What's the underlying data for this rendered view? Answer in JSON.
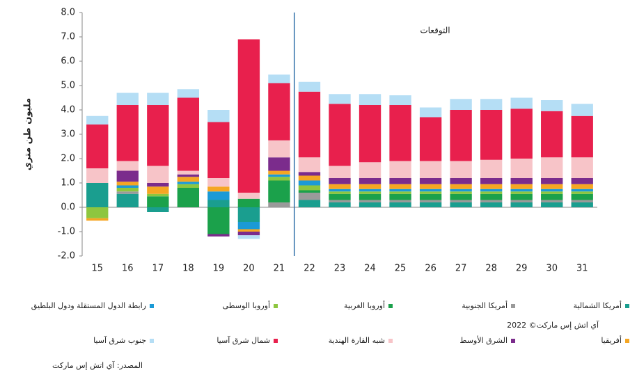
{
  "chart_data": {
    "type": "stacked_bar",
    "y_label": "مليون طن متري",
    "annotation": "التوقعات",
    "copyright": "آي اتش إس ماركت© 2022",
    "source": "المصدر: آي اتش إس ماركت",
    "categories": [
      "15",
      "16",
      "17",
      "18",
      "19",
      "20",
      "21",
      "22",
      "23",
      "24",
      "25",
      "26",
      "27",
      "28",
      "29",
      "30",
      "31"
    ],
    "ylim": [
      -2,
      8
    ],
    "yticks": [
      {
        "value": -2,
        "label": "-2.0"
      },
      {
        "value": -1,
        "label": "-1.0"
      },
      {
        "value": 0,
        "label": "0.0"
      },
      {
        "value": 1,
        "label": "1.0"
      },
      {
        "value": 2,
        "label": "2.0"
      },
      {
        "value": 3,
        "label": "3.0"
      },
      {
        "value": 4,
        "label": "4.0"
      },
      {
        "value": 5,
        "label": "5.0"
      },
      {
        "value": 6,
        "label": "6.0"
      },
      {
        "value": 7,
        "label": "7.0"
      },
      {
        "value": 8,
        "label": "8.0"
      }
    ],
    "series": [
      {
        "name": "أمريكا الشمالية",
        "color": "#1a9e8f",
        "values": [
          1.0,
          0.55,
          -0.2,
          0,
          0.3,
          -0.6,
          0,
          0.3,
          0.2,
          0.2,
          0.2,
          0.2,
          0.2,
          0.2,
          0.2,
          0.2,
          0.2
        ]
      },
      {
        "name": "أمريكا الجنوبية",
        "color": "#9a9a9a",
        "values": [
          0,
          0.1,
          0,
          0,
          0,
          0,
          0.2,
          0.3,
          0.1,
          0.1,
          0.1,
          0.1,
          0.1,
          0.1,
          0.1,
          0.1,
          0.1
        ]
      },
      {
        "name": "أوروبا الغربية",
        "color": "#1ba14b",
        "values": [
          0,
          0,
          0.45,
          0.8,
          -1.1,
          0.35,
          0.9,
          0.1,
          0.25,
          0.25,
          0.25,
          0.25,
          0.25,
          0.25,
          0.25,
          0.25,
          0.25
        ]
      },
      {
        "name": "أوروبا الوسطى",
        "color": "#8dc63f",
        "values": [
          -0.45,
          0.15,
          0.1,
          0.15,
          0,
          0,
          0.15,
          0.2,
          0.1,
          0.1,
          0.1,
          0.1,
          0.1,
          0.1,
          0.1,
          0.1,
          0.1
        ]
      },
      {
        "name": "رابطة الدول المستقلة ودول البلطيق",
        "color": "#1b9ad6",
        "values": [
          0,
          0.1,
          0,
          0.1,
          0.35,
          -0.3,
          0.1,
          0.2,
          0.1,
          0.1,
          0.1,
          0.1,
          0.1,
          0.1,
          0.1,
          0.1,
          0.1
        ]
      },
      {
        "name": "أفريقيا",
        "color": "#f5a623",
        "values": [
          -0.1,
          0.15,
          0.3,
          0.2,
          0.2,
          -0.1,
          0.15,
          0.2,
          0.2,
          0.2,
          0.2,
          0.2,
          0.2,
          0.2,
          0.2,
          0.2,
          0.2
        ]
      },
      {
        "name": "الشرق الأوسط",
        "color": "#7b2c8c",
        "values": [
          0,
          0.45,
          0.15,
          0.1,
          -0.1,
          -0.15,
          0.55,
          0.15,
          0.25,
          0.25,
          0.25,
          0.25,
          0.25,
          0.25,
          0.25,
          0.25,
          0.25
        ]
      },
      {
        "name": "شبه القارة الهندية",
        "color": "#f7c4c8",
        "values": [
          0.6,
          0.4,
          0.7,
          0.15,
          0.35,
          0.25,
          0.7,
          0.6,
          0.5,
          0.65,
          0.7,
          0.7,
          0.7,
          0.75,
          0.8,
          0.85,
          0.85
        ]
      },
      {
        "name": "شمال شرق آسيا",
        "color": "#e8204d",
        "values": [
          1.8,
          2.3,
          2.5,
          3.0,
          2.3,
          6.3,
          2.35,
          2.7,
          2.55,
          2.35,
          2.3,
          1.8,
          2.1,
          2.05,
          2.05,
          1.9,
          1.7
        ]
      },
      {
        "name": "جنوب شرق آسيا",
        "color": "#b5def5",
        "values": [
          0.35,
          0.5,
          0.5,
          0.35,
          0.5,
          -0.15,
          0.35,
          0.4,
          0.4,
          0.45,
          0.4,
          0.4,
          0.45,
          0.45,
          0.45,
          0.45,
          0.5
        ]
      }
    ]
  }
}
